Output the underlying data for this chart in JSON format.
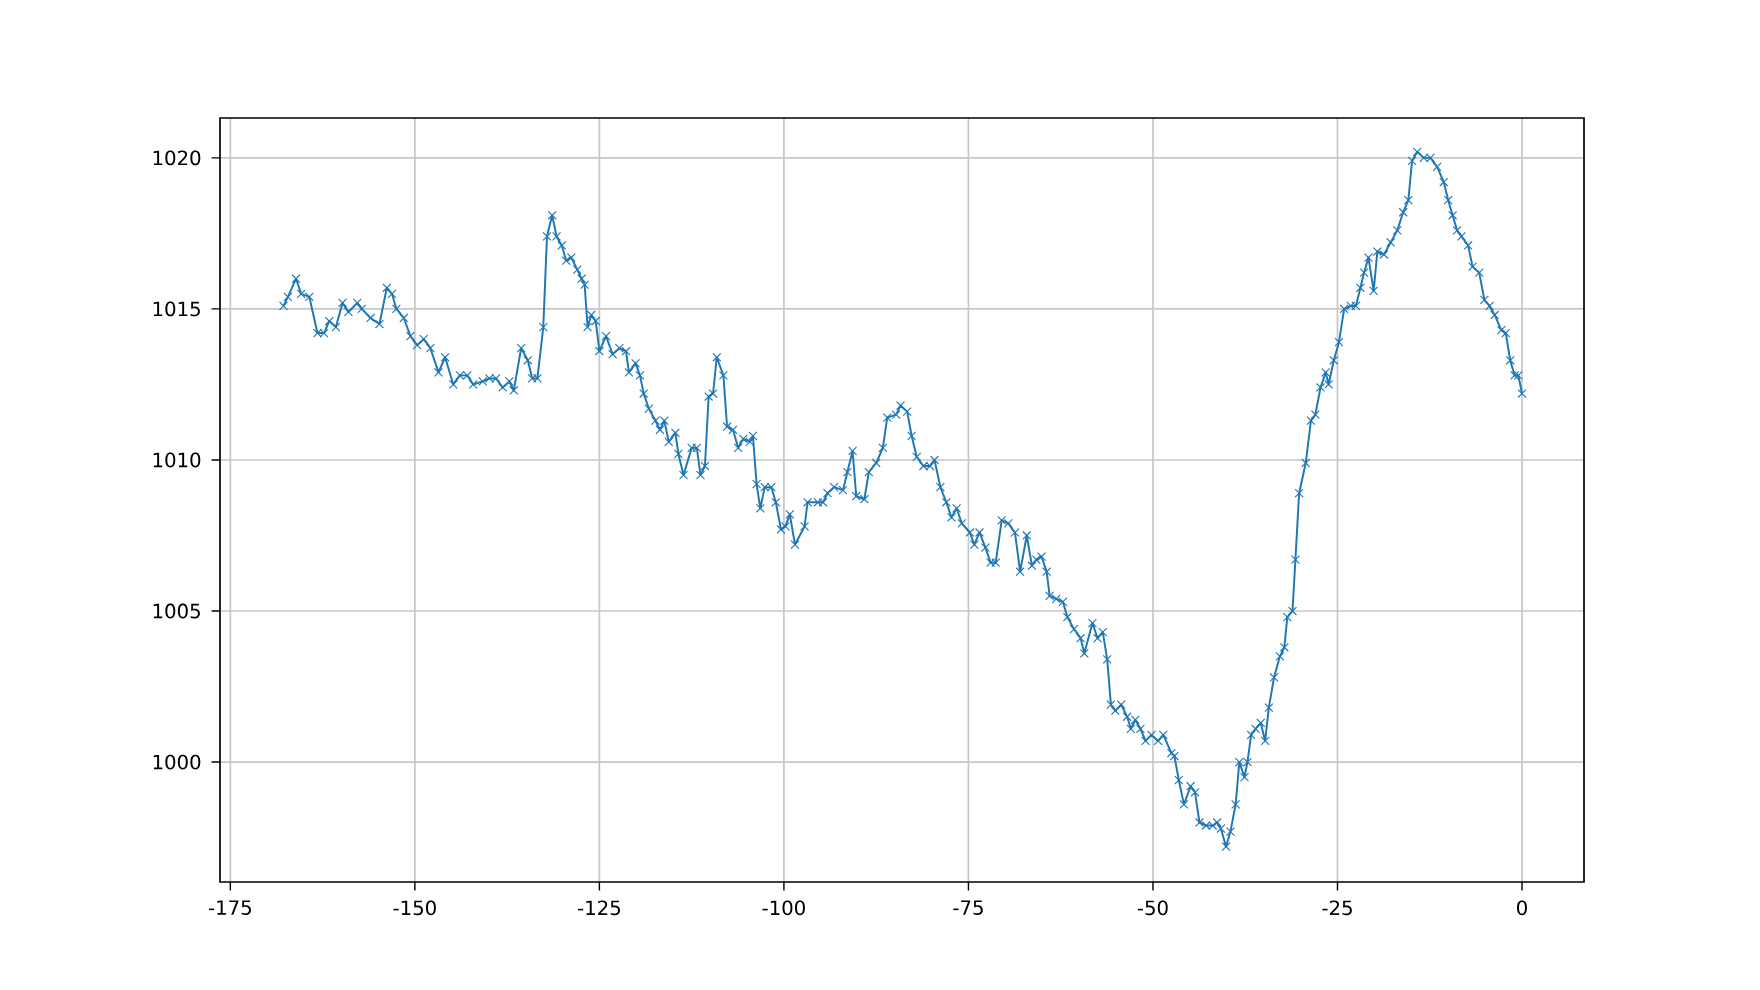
{
  "chart_data": {
    "type": "line",
    "xlim": [
      -176.4,
      8.4
    ],
    "ylim": [
      996.03,
      1021.32
    ],
    "xticks": [
      -175,
      -150,
      -125,
      -100,
      -75,
      -50,
      -25,
      0
    ],
    "yticks": [
      1000,
      1005,
      1010,
      1015,
      1020
    ],
    "grid": true,
    "marker": "cross",
    "line_style": "solid",
    "series": [
      {
        "color": "#1f77b4",
        "x": [
          -167.8,
          -167.2,
          -166.1,
          -165.4,
          -164.3,
          -163.2,
          -162.3,
          -161.6,
          -160.7,
          -159.8,
          -159.0,
          -157.8,
          -157.2,
          -156.0,
          -154.8,
          -153.8,
          -153.1,
          -152.5,
          -151.5,
          -150.6,
          -149.7,
          -148.8,
          -147.9,
          -146.8,
          -145.9,
          -144.8,
          -143.9,
          -142.9,
          -142.1,
          -140.8,
          -139.9,
          -139.0,
          -138.1,
          -137.2,
          -136.6,
          -135.6,
          -134.7,
          -134.1,
          -133.4,
          -132.6,
          -132.1,
          -131.4,
          -130.8,
          -130.1,
          -129.5,
          -128.8,
          -128.0,
          -127.4,
          -127.0,
          -126.6,
          -126.1,
          -125.5,
          -125.0,
          -124.1,
          -123.2,
          -122.3,
          -121.4,
          -121.0,
          -120.1,
          -119.5,
          -119.0,
          -118.3,
          -117.4,
          -116.8,
          -116.2,
          -115.6,
          -114.7,
          -114.3,
          -113.6,
          -112.5,
          -111.8,
          -111.3,
          -110.7,
          -110.2,
          -109.6,
          -109.1,
          -108.2,
          -107.7,
          -106.9,
          -106.2,
          -105.5,
          -104.6,
          -104.2,
          -103.7,
          -103.2,
          -102.6,
          -101.7,
          -101.1,
          -100.4,
          -99.8,
          -99.2,
          -98.5,
          -97.2,
          -96.8,
          -95.4,
          -94.7,
          -94.1,
          -93.2,
          -92.0,
          -91.4,
          -90.7,
          -90.2,
          -89.1,
          -88.5,
          -87.5,
          -86.6,
          -86.0,
          -84.8,
          -84.2,
          -83.3,
          -82.7,
          -82.0,
          -81.1,
          -80.2,
          -79.6,
          -78.8,
          -78.0,
          -77.3,
          -76.6,
          -75.9,
          -74.8,
          -74.2,
          -73.5,
          -72.7,
          -72.0,
          -71.3,
          -70.5,
          -69.6,
          -68.7,
          -68.0,
          -67.1,
          -66.4,
          -65.8,
          -65.1,
          -64.4,
          -64.0,
          -63.1,
          -62.2,
          -61.6,
          -60.7,
          -59.8,
          -59.3,
          -58.2,
          -57.5,
          -56.8,
          -56.2,
          -55.7,
          -55.1,
          -54.3,
          -53.5,
          -53.0,
          -52.4,
          -51.7,
          -51.0,
          -50.2,
          -49.3,
          -48.6,
          -47.5,
          -47.1,
          -46.5,
          -45.8,
          -44.9,
          -44.3,
          -43.7,
          -42.8,
          -41.9,
          -41.3,
          -40.8,
          -40.1,
          -39.5,
          -38.8,
          -38.3,
          -37.6,
          -37.2,
          -36.7,
          -36.1,
          -35.4,
          -34.8,
          -34.3,
          -33.6,
          -32.8,
          -32.2,
          -31.8,
          -31.1,
          -30.7,
          -30.2,
          -29.3,
          -28.6,
          -28.0,
          -27.3,
          -26.6,
          -26.2,
          -25.5,
          -24.8,
          -24.1,
          -23.2,
          -22.5,
          -21.9,
          -21.4,
          -20.8,
          -20.1,
          -19.6,
          -18.7,
          -17.8,
          -16.9,
          -16.1,
          -15.4,
          -14.9,
          -14.2,
          -13.3,
          -12.4,
          -11.5,
          -10.6,
          -10.0,
          -9.4,
          -8.8,
          -8.2,
          -7.3,
          -6.7,
          -5.8,
          -5.1,
          -4.4,
          -3.7,
          -2.8,
          -2.2,
          -1.6,
          -1.0,
          -0.5,
          0
        ],
        "values": [
          1015.1,
          1015.4,
          1016.0,
          1015.5,
          1015.4,
          1014.2,
          1014.2,
          1014.6,
          1014.4,
          1015.2,
          1014.9,
          1015.2,
          1015.0,
          1014.7,
          1014.5,
          1015.7,
          1015.5,
          1015.0,
          1014.7,
          1014.1,
          1013.8,
          1014.0,
          1013.7,
          1012.9,
          1013.4,
          1012.5,
          1012.8,
          1012.8,
          1012.5,
          1012.6,
          1012.7,
          1012.7,
          1012.4,
          1012.6,
          1012.3,
          1013.7,
          1013.3,
          1012.7,
          1012.7,
          1014.4,
          1017.4,
          1018.1,
          1017.4,
          1017.1,
          1016.6,
          1016.7,
          1016.3,
          1016.0,
          1015.8,
          1014.4,
          1014.8,
          1014.6,
          1013.6,
          1014.1,
          1013.5,
          1013.7,
          1013.6,
          1012.9,
          1013.2,
          1012.8,
          1012.2,
          1011.7,
          1011.3,
          1011.0,
          1011.3,
          1010.6,
          1010.9,
          1010.2,
          1009.5,
          1010.4,
          1010.4,
          1009.5,
          1009.8,
          1012.1,
          1012.2,
          1013.4,
          1012.8,
          1011.1,
          1011.0,
          1010.4,
          1010.7,
          1010.6,
          1010.8,
          1009.2,
          1008.4,
          1009.1,
          1009.1,
          1008.6,
          1007.7,
          1007.8,
          1008.2,
          1007.2,
          1007.8,
          1008.6,
          1008.6,
          1008.6,
          1008.9,
          1009.1,
          1009.0,
          1009.6,
          1010.3,
          1008.8,
          1008.7,
          1009.6,
          1009.9,
          1010.4,
          1011.4,
          1011.5,
          1011.8,
          1011.6,
          1010.8,
          1010.1,
          1009.8,
          1009.8,
          1010.0,
          1009.1,
          1008.6,
          1008.1,
          1008.4,
          1007.9,
          1007.6,
          1007.2,
          1007.6,
          1007.1,
          1006.6,
          1006.6,
          1008.0,
          1007.9,
          1007.6,
          1006.3,
          1007.5,
          1006.5,
          1006.7,
          1006.8,
          1006.3,
          1005.5,
          1005.4,
          1005.3,
          1004.8,
          1004.4,
          1004.1,
          1003.6,
          1004.6,
          1004.1,
          1004.3,
          1003.4,
          1001.9,
          1001.7,
          1001.9,
          1001.5,
          1001.1,
          1001.4,
          1001.1,
          1000.7,
          1000.9,
          1000.7,
          1000.9,
          1000.3,
          1000.2,
          999.4,
          998.6,
          999.2,
          999.0,
          998.0,
          997.9,
          997.9,
          998.0,
          997.8,
          997.2,
          997.7,
          998.6,
          1000.0,
          999.5,
          1000.0,
          1000.9,
          1001.1,
          1001.3,
          1000.7,
          1001.8,
          1002.8,
          1003.5,
          1003.8,
          1004.8,
          1005.0,
          1006.7,
          1008.9,
          1009.9,
          1011.3,
          1011.5,
          1012.4,
          1012.9,
          1012.5,
          1013.3,
          1013.9,
          1015.0,
          1015.1,
          1015.1,
          1015.7,
          1016.2,
          1016.7,
          1015.6,
          1016.9,
          1016.8,
          1017.2,
          1017.6,
          1018.2,
          1018.6,
          1019.9,
          1020.2,
          1020.0,
          1020.0,
          1019.7,
          1019.2,
          1018.6,
          1018.1,
          1017.6,
          1017.4,
          1017.1,
          1016.4,
          1016.2,
          1015.3,
          1015.1,
          1014.8,
          1014.3,
          1014.2,
          1013.3,
          1012.8,
          1012.8,
          1012.2
        ]
      }
    ]
  }
}
